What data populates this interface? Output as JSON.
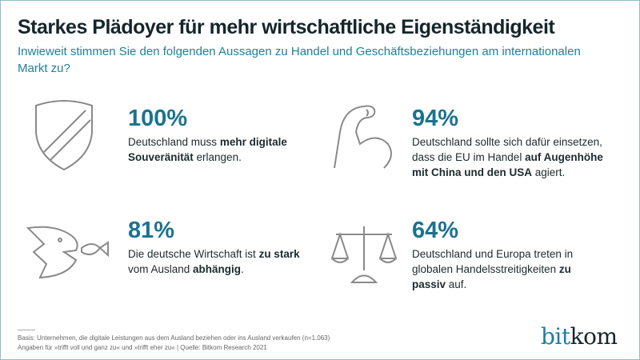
{
  "title": "Starkes Plädoyer für mehr wirtschaftliche Eigenständigkeit",
  "subtitle": "Inwieweit stimmen Sie den folgenden Aussagen zu Handel und Geschäftsbeziehungen am internationalen Markt zu?",
  "colors": {
    "accent": "#1b7291",
    "text": "#14262b",
    "icon_stroke": "#8a8a8a"
  },
  "stats": [
    {
      "icon": "shield-icon",
      "percent": "100%",
      "parts": [
        {
          "t": "Deutschland muss "
        },
        {
          "t": "mehr digitale Souveränität",
          "b": true
        },
        {
          "t": " erlangen."
        }
      ]
    },
    {
      "icon": "flexed-arm-icon",
      "percent": "94%",
      "parts": [
        {
          "t": "Deutschland sollte sich dafür einsetzen, dass die EU im Handel "
        },
        {
          "t": "auf Augenhöhe mit China und den USA",
          "b": true
        },
        {
          "t": " agiert."
        }
      ]
    },
    {
      "icon": "big-fish-eating-small-fish-icon",
      "percent": "81%",
      "parts": [
        {
          "t": "Die deutsche Wirtschaft ist "
        },
        {
          "t": "zu stark",
          "b": true
        },
        {
          "t": " vom Ausland "
        },
        {
          "t": "abhängig",
          "b": true
        },
        {
          "t": "."
        }
      ]
    },
    {
      "icon": "scales-icon",
      "percent": "64%",
      "parts": [
        {
          "t": "Deutschland und Europa treten in globalen Handelsstreitigkeiten "
        },
        {
          "t": "zu passiv",
          "b": true
        },
        {
          "t": " auf."
        }
      ]
    }
  ],
  "footer": {
    "line1": "Basis: Unternehmen, die digitale Leistungen aus dem Ausland beziehen oder ins Ausland verkaufen (n=1.063)",
    "line2": "Angaben für »trifft voll und ganz zu« und »trifft eher zu« | Quelle: Bitkom Research 2021"
  },
  "logo": {
    "part1": "bit",
    "part2": "kom"
  }
}
